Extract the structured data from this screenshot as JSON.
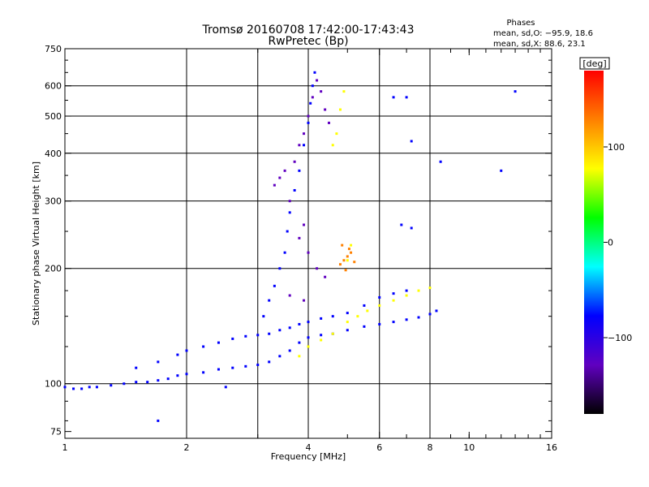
{
  "chart_data": {
    "type": "scatter",
    "title": "Tromsø 20160708 17:42:00-17:43:43",
    "subtitle": "RwPretec (Bp)",
    "xlabel": "Frequency [MHz]",
    "ylabel": "Stationary phase Virtual Height [km]",
    "x_scale": "log",
    "y_scale": "log",
    "xlim": [
      1,
      16
    ],
    "ylim": [
      72,
      750
    ],
    "x_ticks": [
      1,
      2,
      4,
      6,
      8,
      10,
      16
    ],
    "x_tick_labels": [
      "1",
      "2",
      "4",
      "6",
      "8",
      "10",
      "16"
    ],
    "x_grid": [
      2,
      3,
      4,
      6,
      8
    ],
    "x_minor_ticks": [
      3,
      5,
      7,
      9,
      10,
      11,
      12,
      13,
      14,
      15
    ],
    "y_ticks": [
      75,
      100,
      200,
      300,
      400,
      500,
      600,
      750
    ],
    "y_tick_labels": [
      "75",
      "100",
      "200",
      "300",
      "400",
      "500",
      "600",
      "750"
    ],
    "y_grid": [
      100,
      200,
      300,
      400,
      500,
      600
    ],
    "grid": true,
    "annotation": {
      "heading": "Phases",
      "line1": "mean, sd,O: −95.9, 18.6",
      "line2": "mean, sd,X:  88.6, 23.1"
    },
    "colorbar": {
      "label": "[deg]",
      "range": [
        -180,
        180
      ],
      "ticks": [
        100,
        0,
        -100
      ],
      "tick_labels": [
        "100",
        "0",
        "−100"
      ],
      "colors": [
        "#ff0000",
        "#ff8000",
        "#ffff00",
        "#00ff00",
        "#00ffff",
        "#0000ff",
        "#6000c0",
        "#000000"
      ]
    },
    "series": [
      {
        "role": "o-mode lower trace",
        "phase_deg": -100,
        "points": [
          [
            1.0,
            98
          ],
          [
            1.05,
            97
          ],
          [
            1.1,
            97
          ],
          [
            1.15,
            98
          ],
          [
            1.2,
            98
          ],
          [
            1.3,
            99
          ],
          [
            1.4,
            100
          ],
          [
            1.5,
            101
          ],
          [
            1.6,
            101
          ],
          [
            1.7,
            102
          ],
          [
            1.8,
            103
          ],
          [
            1.9,
            105
          ],
          [
            2.0,
            106
          ],
          [
            2.2,
            107
          ],
          [
            2.4,
            109
          ],
          [
            2.6,
            110
          ],
          [
            2.8,
            111
          ],
          [
            3.0,
            112
          ],
          [
            3.2,
            114
          ],
          [
            3.4,
            118
          ],
          [
            3.6,
            122
          ],
          [
            3.8,
            128
          ],
          [
            4.0,
            132
          ],
          [
            4.3,
            134
          ],
          [
            4.6,
            135
          ],
          [
            5.0,
            138
          ],
          [
            5.5,
            141
          ],
          [
            6.0,
            143
          ],
          [
            6.5,
            145
          ],
          [
            7.0,
            147
          ],
          [
            7.5,
            149
          ],
          [
            8.0,
            152
          ],
          [
            8.3,
            155
          ]
        ]
      },
      {
        "role": "o-mode upper trace",
        "phase_deg": -100,
        "points": [
          [
            1.5,
            110
          ],
          [
            1.7,
            114
          ],
          [
            1.9,
            119
          ],
          [
            2.0,
            122
          ],
          [
            2.2,
            125
          ],
          [
            2.4,
            128
          ],
          [
            2.6,
            131
          ],
          [
            2.8,
            133
          ],
          [
            3.0,
            134
          ],
          [
            3.2,
            135
          ],
          [
            3.4,
            138
          ],
          [
            3.6,
            140
          ],
          [
            3.8,
            143
          ],
          [
            4.0,
            145
          ],
          [
            4.3,
            148
          ],
          [
            4.6,
            150
          ],
          [
            5.0,
            153
          ],
          [
            5.5,
            160
          ],
          [
            6.0,
            168
          ],
          [
            6.5,
            172
          ],
          [
            7.0,
            175
          ]
        ]
      },
      {
        "role": "F-region steep trace",
        "phase_deg": -100,
        "points": [
          [
            3.1,
            150
          ],
          [
            3.2,
            165
          ],
          [
            3.3,
            180
          ],
          [
            3.4,
            200
          ],
          [
            3.5,
            220
          ],
          [
            3.55,
            250
          ],
          [
            3.6,
            280
          ],
          [
            3.7,
            320
          ],
          [
            3.8,
            360
          ],
          [
            3.9,
            420
          ],
          [
            4.0,
            480
          ],
          [
            4.05,
            540
          ],
          [
            4.1,
            600
          ],
          [
            4.15,
            650
          ]
        ]
      },
      {
        "role": "scattered spread-F cluster",
        "phase_deg": -105,
        "points": [
          [
            3.3,
            330
          ],
          [
            3.4,
            345
          ],
          [
            3.5,
            360
          ],
          [
            3.6,
            300
          ],
          [
            3.7,
            380
          ],
          [
            3.8,
            420
          ],
          [
            3.9,
            450
          ],
          [
            4.0,
            500
          ],
          [
            4.1,
            560
          ],
          [
            4.2,
            620
          ],
          [
            4.3,
            580
          ],
          [
            4.4,
            520
          ],
          [
            4.5,
            480
          ],
          [
            3.9,
            260
          ],
          [
            3.8,
            240
          ],
          [
            4.0,
            220
          ],
          [
            4.2,
            200
          ],
          [
            4.4,
            190
          ],
          [
            3.6,
            170
          ],
          [
            3.9,
            165
          ]
        ]
      },
      {
        "role": "x-mode trace",
        "phase_deg": 100,
        "points": [
          [
            3.8,
            118
          ],
          [
            4.0,
            125
          ],
          [
            4.3,
            130
          ],
          [
            4.6,
            135
          ],
          [
            5.0,
            145
          ],
          [
            5.3,
            150
          ],
          [
            5.6,
            155
          ],
          [
            6.0,
            160
          ],
          [
            6.5,
            165
          ],
          [
            7.0,
            170
          ],
          [
            7.5,
            175
          ],
          [
            8.0,
            178
          ],
          [
            4.7,
            450
          ],
          [
            4.8,
            520
          ],
          [
            4.9,
            580
          ],
          [
            4.6,
            420
          ],
          [
            5.0,
            210
          ],
          [
            5.1,
            230
          ]
        ]
      },
      {
        "role": "x-mode orange cluster",
        "phase_deg": 150,
        "points": [
          [
            4.8,
            205
          ],
          [
            4.9,
            210
          ],
          [
            5.0,
            215
          ],
          [
            5.1,
            220
          ],
          [
            5.2,
            208
          ],
          [
            4.95,
            198
          ],
          [
            5.05,
            225
          ],
          [
            4.85,
            230
          ]
        ]
      },
      {
        "role": "isolated echoes",
        "phase_deg": -100,
        "points": [
          [
            6.5,
            560
          ],
          [
            7.0,
            560
          ],
          [
            7.2,
            430
          ],
          [
            8.5,
            380
          ],
          [
            12.0,
            360
          ],
          [
            13.0,
            580
          ],
          [
            1.7,
            80
          ],
          [
            2.5,
            98
          ],
          [
            6.8,
            260
          ],
          [
            7.2,
            255
          ]
        ]
      }
    ]
  }
}
